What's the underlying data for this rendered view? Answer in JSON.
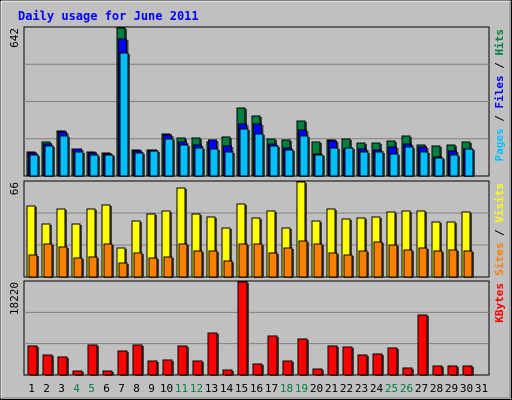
{
  "chart_data": {
    "type": "bar",
    "title": "Daily usage for June 2011",
    "categories": [
      "1",
      "2",
      "3",
      "4",
      "5",
      "6",
      "7",
      "8",
      "9",
      "10",
      "11",
      "12",
      "13",
      "14",
      "15",
      "16",
      "17",
      "18",
      "19",
      "20",
      "21",
      "22",
      "23",
      "24",
      "25",
      "26",
      "27",
      "28",
      "29",
      "30",
      "31"
    ],
    "weekend_days": [
      "4",
      "5",
      "11",
      "12",
      "18",
      "19",
      "25",
      "26"
    ],
    "panels": [
      {
        "id": "hits",
        "max_label": "642",
        "ymax": 642,
        "axis_label": "Pages / Files / Hits",
        "series": [
          {
            "name": "Hits",
            "color": "#008040",
            "values": [
              102,
              147,
              195,
              119,
              103,
              101,
              642,
              112,
              113,
              183,
              166,
              166,
              147,
              168,
              297,
              259,
              161,
              158,
              238,
              146,
              158,
              159,
              144,
              143,
              151,
              172,
              135,
              130,
              133,
              149,
              0
            ]
          },
          {
            "name": "Files",
            "color": "#0000ff",
            "values": [
              100,
              138,
              189,
              119,
              101,
              96,
              595,
              109,
              113,
              176,
              148,
              136,
              157,
              132,
              224,
              225,
              137,
              120,
              198,
              95,
              152,
              117,
              117,
              112,
              125,
              138,
              124,
              83,
              107,
              119,
              0
            ]
          },
          {
            "name": "Pages",
            "color": "#00c0ff",
            "values": [
              93,
              130,
              173,
              104,
              93,
              89,
              535,
              98,
              107,
              162,
              133,
              122,
              117,
              104,
              202,
              182,
              131,
              113,
              173,
              90,
              123,
              122,
              102,
              106,
              96,
              127,
              106,
              80,
              93,
              119,
              0
            ]
          }
        ],
        "legend": [
          "Pages",
          "Files",
          "Hits"
        ]
      },
      {
        "id": "visits",
        "max_label": "66",
        "ymax": 66,
        "axis_label": "Sites / Visits",
        "series": [
          {
            "name": "Visits",
            "color": "#ffff00",
            "values": [
              49,
              37,
              47,
              37,
              47,
              50,
              20,
              39,
              44,
              46,
              62,
              44,
              42,
              34,
              51,
              41,
              46,
              34,
              66,
              39,
              47,
              40,
              41,
              42,
              45,
              46,
              46,
              38,
              38,
              45,
              0
            ]
          },
          {
            "name": "Sites",
            "color": "#ff8000",
            "values": [
              15,
              23,
              21,
              13,
              14,
              23,
              10,
              17,
              13,
              14,
              23,
              18,
              18,
              11,
              23,
              23,
              17,
              20,
              25,
              23,
              17,
              15,
              18,
              24,
              22,
              19,
              20,
              18,
              19,
              18,
              0
            ]
          }
        ],
        "legend": [
          "Sites",
          "Visits"
        ]
      },
      {
        "id": "kbytes",
        "max_label": "18220",
        "ymax": 18220,
        "axis_label": "KBytes",
        "series": [
          {
            "name": "KBytes",
            "color": "#ff0000",
            "values": [
              5600,
              3900,
              3600,
              800,
              5900,
              800,
              4700,
              5800,
              2700,
              3000,
              5700,
              2700,
              8300,
              900,
              18220,
              2100,
              7700,
              2700,
              7000,
              1100,
              5700,
              5400,
              3900,
              4200,
              5300,
              1400,
              11700,
              1700,
              1700,
              1700,
              0
            ]
          }
        ],
        "legend": [
          "KBytes"
        ]
      }
    ]
  },
  "colors": {
    "background": "#c0c0c0",
    "title": "#0000ff",
    "weekday_label": "#000000",
    "weekend_label": "#008040",
    "grid": "#808080"
  }
}
